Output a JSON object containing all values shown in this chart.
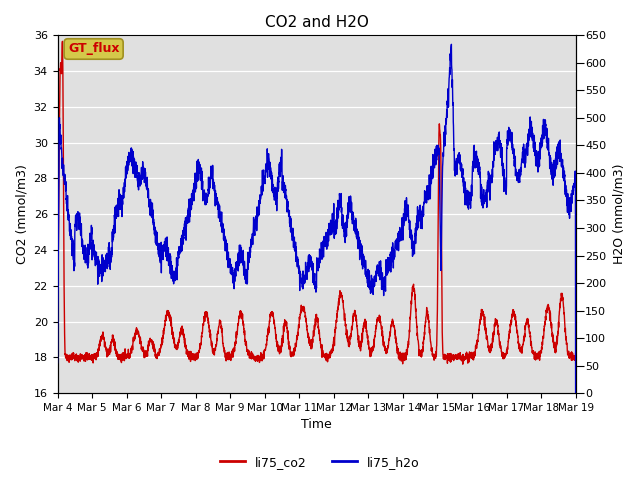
{
  "title": "CO2 and H2O",
  "xlabel": "Time",
  "ylabel_left": "CO2 (mmol/m3)",
  "ylabel_right": "H2O (mmol/m3)",
  "ylim_left": [
    16,
    36
  ],
  "ylim_right": [
    0,
    650
  ],
  "yticks_left": [
    16,
    18,
    20,
    22,
    24,
    26,
    28,
    30,
    32,
    34,
    36
  ],
  "yticks_right": [
    0,
    50,
    100,
    150,
    200,
    250,
    300,
    350,
    400,
    450,
    500,
    550,
    600,
    650
  ],
  "xtick_labels": [
    "Mar 4",
    "Mar 5",
    "Mar 6",
    "Mar 7",
    "Mar 8",
    "Mar 9",
    "Mar 10",
    "Mar 11",
    "Mar 12",
    "Mar 13",
    "Mar 14",
    "Mar 15",
    "Mar 16",
    "Mar 17",
    "Mar 18",
    "Mar 19"
  ],
  "co2_color": "#cc0000",
  "h2o_color": "#0000cc",
  "bg_color": "#e0e0e0",
  "legend_box_facecolor": "#d4c84a",
  "legend_box_edgecolor": "#a09020",
  "legend_text": "GT_flux",
  "legend_entries": [
    "li75_co2",
    "li75_h2o"
  ],
  "line_width": 1.0
}
